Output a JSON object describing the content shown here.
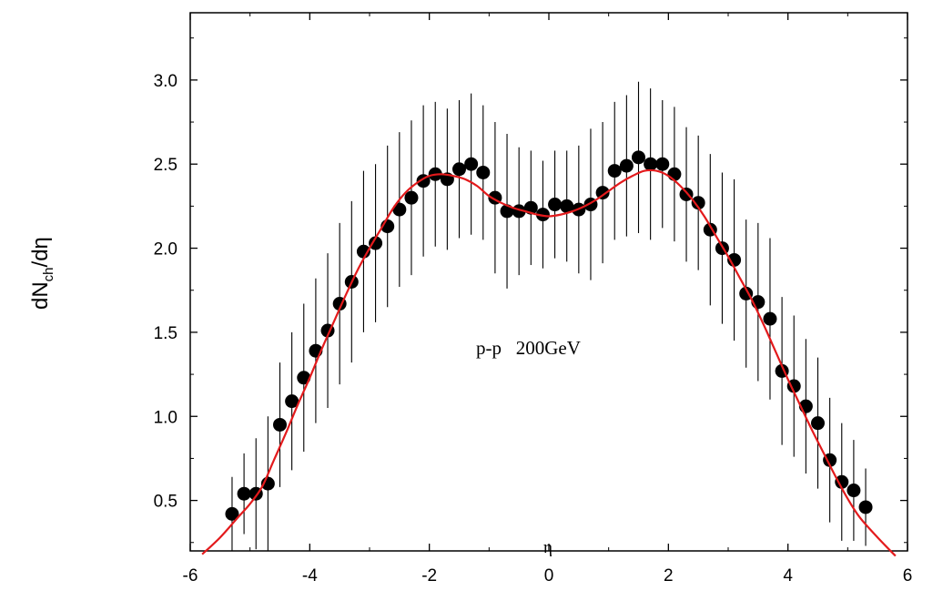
{
  "chart_data": {
    "type": "scatter",
    "xlabel": "η",
    "ylabel_main": "dN",
    "ylabel_sub": "ch",
    "ylabel_tail": "/dη",
    "annotation": "p-p   200GeV",
    "xlim": [
      -6,
      6
    ],
    "ylim": [
      0.2,
      3.4
    ],
    "x_ticks": [
      -6,
      -4,
      -2,
      0,
      2,
      4,
      6
    ],
    "y_ticks": [
      0.5,
      1.0,
      1.5,
      2.0,
      2.5,
      3.0
    ],
    "x_tick_labels": [
      "-6",
      "-4",
      "-2",
      "0",
      "2",
      "4",
      "6"
    ],
    "y_tick_labels": [
      "0.5",
      "1.0",
      "1.5",
      "2.0",
      "2.5",
      "3.0"
    ],
    "grid": false,
    "colors": {
      "points": "#000000",
      "curve": "#e31a1c",
      "errorbars": "#000000"
    },
    "points": [
      {
        "x": -5.3,
        "y": 0.42,
        "err": 0.22
      },
      {
        "x": -5.1,
        "y": 0.54,
        "err": 0.24
      },
      {
        "x": -4.9,
        "y": 0.54,
        "err": 0.33
      },
      {
        "x": -4.7,
        "y": 0.6,
        "err": 0.4
      },
      {
        "x": -4.5,
        "y": 0.95,
        "err": 0.37
      },
      {
        "x": -4.3,
        "y": 1.09,
        "err": 0.41
      },
      {
        "x": -4.1,
        "y": 1.23,
        "err": 0.44
      },
      {
        "x": -3.9,
        "y": 1.39,
        "err": 0.43
      },
      {
        "x": -3.7,
        "y": 1.51,
        "err": 0.46
      },
      {
        "x": -3.5,
        "y": 1.67,
        "err": 0.48
      },
      {
        "x": -3.3,
        "y": 1.8,
        "err": 0.48
      },
      {
        "x": -3.1,
        "y": 1.98,
        "err": 0.48
      },
      {
        "x": -2.9,
        "y": 2.03,
        "err": 0.47
      },
      {
        "x": -2.7,
        "y": 2.13,
        "err": 0.48
      },
      {
        "x": -2.5,
        "y": 2.23,
        "err": 0.46
      },
      {
        "x": -2.3,
        "y": 2.3,
        "err": 0.46
      },
      {
        "x": -2.1,
        "y": 2.4,
        "err": 0.45
      },
      {
        "x": -1.9,
        "y": 2.44,
        "err": 0.43
      },
      {
        "x": -1.7,
        "y": 2.41,
        "err": 0.42
      },
      {
        "x": -1.5,
        "y": 2.47,
        "err": 0.41
      },
      {
        "x": -1.3,
        "y": 2.5,
        "err": 0.42
      },
      {
        "x": -1.1,
        "y": 2.45,
        "err": 0.4
      },
      {
        "x": -0.9,
        "y": 2.3,
        "err": 0.45
      },
      {
        "x": -0.7,
        "y": 2.22,
        "err": 0.46
      },
      {
        "x": -0.5,
        "y": 2.22,
        "err": 0.38
      },
      {
        "x": -0.3,
        "y": 2.24,
        "err": 0.34
      },
      {
        "x": -0.1,
        "y": 2.2,
        "err": 0.32
      },
      {
        "x": 0.1,
        "y": 2.26,
        "err": 0.32
      },
      {
        "x": 0.3,
        "y": 2.25,
        "err": 0.33
      },
      {
        "x": 0.5,
        "y": 2.23,
        "err": 0.38
      },
      {
        "x": 0.7,
        "y": 2.26,
        "err": 0.45
      },
      {
        "x": 0.9,
        "y": 2.33,
        "err": 0.42
      },
      {
        "x": 1.1,
        "y": 2.46,
        "err": 0.41
      },
      {
        "x": 1.3,
        "y": 2.49,
        "err": 0.42
      },
      {
        "x": 1.5,
        "y": 2.54,
        "err": 0.45
      },
      {
        "x": 1.7,
        "y": 2.5,
        "err": 0.45
      },
      {
        "x": 1.9,
        "y": 2.5,
        "err": 0.38
      },
      {
        "x": 2.1,
        "y": 2.44,
        "err": 0.4
      },
      {
        "x": 2.3,
        "y": 2.32,
        "err": 0.4
      },
      {
        "x": 2.5,
        "y": 2.27,
        "err": 0.4
      },
      {
        "x": 2.7,
        "y": 2.11,
        "err": 0.45
      },
      {
        "x": 2.9,
        "y": 2.0,
        "err": 0.45
      },
      {
        "x": 3.1,
        "y": 1.93,
        "err": 0.48
      },
      {
        "x": 3.3,
        "y": 1.73,
        "err": 0.44
      },
      {
        "x": 3.5,
        "y": 1.68,
        "err": 0.47
      },
      {
        "x": 3.7,
        "y": 1.58,
        "err": 0.48
      },
      {
        "x": 3.9,
        "y": 1.27,
        "err": 0.44
      },
      {
        "x": 4.1,
        "y": 1.18,
        "err": 0.42
      },
      {
        "x": 4.3,
        "y": 1.06,
        "err": 0.4
      },
      {
        "x": 4.5,
        "y": 0.96,
        "err": 0.39
      },
      {
        "x": 4.7,
        "y": 0.74,
        "err": 0.37
      },
      {
        "x": 4.9,
        "y": 0.61,
        "err": 0.35
      },
      {
        "x": 5.1,
        "y": 0.56,
        "err": 0.3
      },
      {
        "x": 5.3,
        "y": 0.46,
        "err": 0.23
      }
    ],
    "curve": [
      {
        "x": -5.8,
        "y": 0.18
      },
      {
        "x": -5.5,
        "y": 0.28
      },
      {
        "x": -5.2,
        "y": 0.4
      },
      {
        "x": -5.0,
        "y": 0.48
      },
      {
        "x": -4.8,
        "y": 0.58
      },
      {
        "x": -4.6,
        "y": 0.74
      },
      {
        "x": -4.4,
        "y": 0.9
      },
      {
        "x": -4.2,
        "y": 1.07
      },
      {
        "x": -4.0,
        "y": 1.23
      },
      {
        "x": -3.8,
        "y": 1.4
      },
      {
        "x": -3.6,
        "y": 1.56
      },
      {
        "x": -3.4,
        "y": 1.72
      },
      {
        "x": -3.2,
        "y": 1.87
      },
      {
        "x": -3.0,
        "y": 2.0
      },
      {
        "x": -2.8,
        "y": 2.12
      },
      {
        "x": -2.6,
        "y": 2.24
      },
      {
        "x": -2.4,
        "y": 2.33
      },
      {
        "x": -2.2,
        "y": 2.39
      },
      {
        "x": -2.0,
        "y": 2.43
      },
      {
        "x": -1.8,
        "y": 2.44
      },
      {
        "x": -1.6,
        "y": 2.43
      },
      {
        "x": -1.4,
        "y": 2.41
      },
      {
        "x": -1.2,
        "y": 2.37
      },
      {
        "x": -1.0,
        "y": 2.31
      },
      {
        "x": -0.8,
        "y": 2.27
      },
      {
        "x": -0.6,
        "y": 2.24
      },
      {
        "x": -0.4,
        "y": 2.22
      },
      {
        "x": -0.2,
        "y": 2.2
      },
      {
        "x": 0.0,
        "y": 2.19
      },
      {
        "x": 0.2,
        "y": 2.2
      },
      {
        "x": 0.4,
        "y": 2.22
      },
      {
        "x": 0.6,
        "y": 2.25
      },
      {
        "x": 0.8,
        "y": 2.29
      },
      {
        "x": 1.0,
        "y": 2.34
      },
      {
        "x": 1.2,
        "y": 2.39
      },
      {
        "x": 1.4,
        "y": 2.43
      },
      {
        "x": 1.6,
        "y": 2.46
      },
      {
        "x": 1.8,
        "y": 2.46
      },
      {
        "x": 2.0,
        "y": 2.43
      },
      {
        "x": 2.2,
        "y": 2.37
      },
      {
        "x": 2.4,
        "y": 2.29
      },
      {
        "x": 2.6,
        "y": 2.19
      },
      {
        "x": 2.8,
        "y": 2.07
      },
      {
        "x": 3.0,
        "y": 1.95
      },
      {
        "x": 3.2,
        "y": 1.82
      },
      {
        "x": 3.4,
        "y": 1.69
      },
      {
        "x": 3.6,
        "y": 1.54
      },
      {
        "x": 3.8,
        "y": 1.38
      },
      {
        "x": 4.0,
        "y": 1.22
      },
      {
        "x": 4.2,
        "y": 1.07
      },
      {
        "x": 4.4,
        "y": 0.92
      },
      {
        "x": 4.6,
        "y": 0.78
      },
      {
        "x": 4.8,
        "y": 0.64
      },
      {
        "x": 5.0,
        "y": 0.51
      },
      {
        "x": 5.2,
        "y": 0.4
      },
      {
        "x": 5.5,
        "y": 0.28
      },
      {
        "x": 5.8,
        "y": 0.17
      }
    ]
  }
}
